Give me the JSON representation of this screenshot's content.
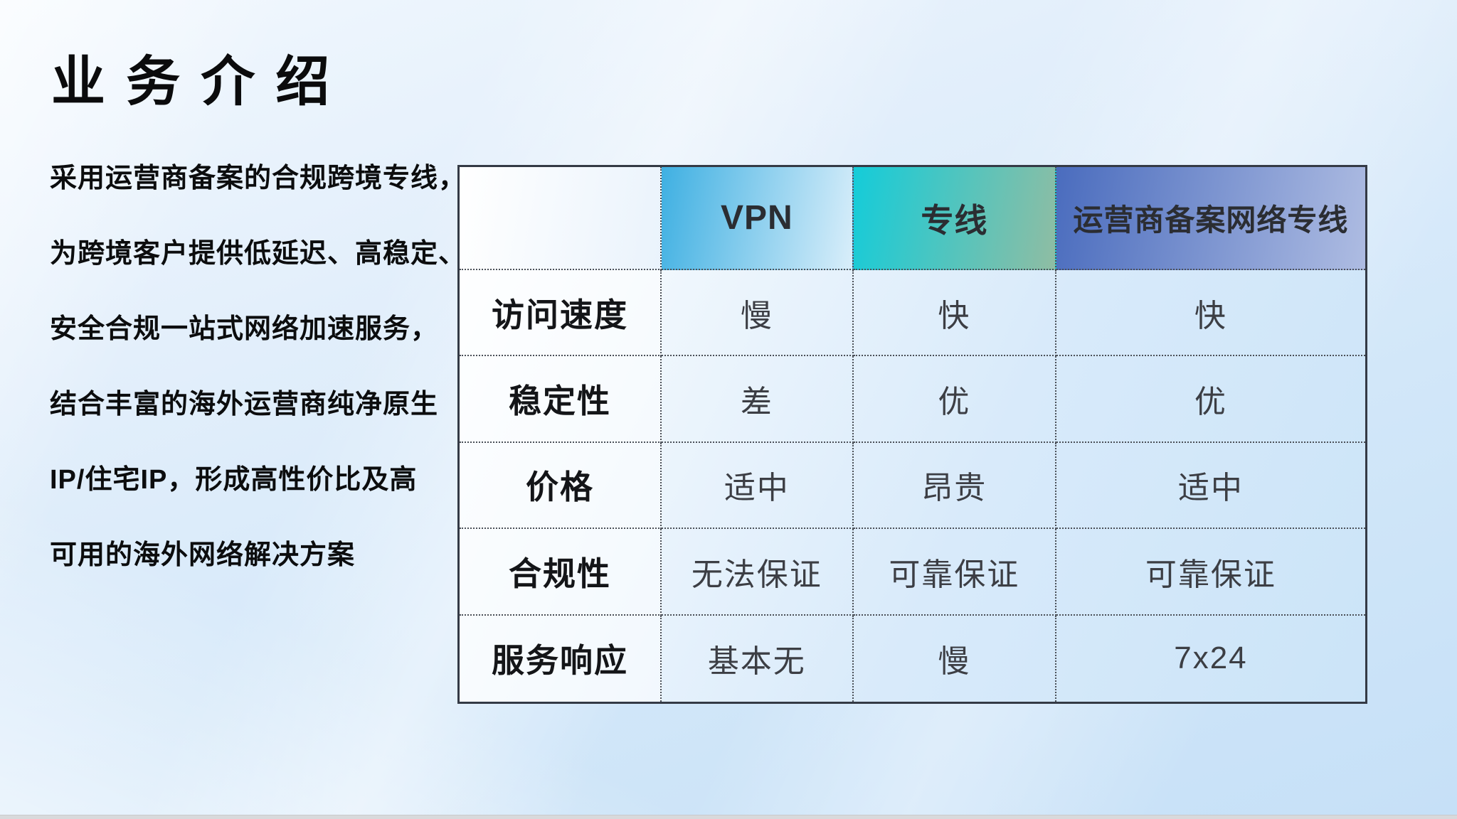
{
  "page": {
    "title": "业 务 介 绍",
    "background_base": "#cfe5f8",
    "bottom_strip_color": "#d8d9db"
  },
  "intro": {
    "lines": [
      "采用运营商备案的合规跨境专线，",
      "为跨境客户提供低延迟、高稳定、",
      "安全合规一站式网络加速服务，",
      "结合丰富的海外运营商纯净原生",
      "IP/住宅IP，形成高性价比及高",
      "可用的海外网络解决方案"
    ]
  },
  "comparison_table": {
    "columns": [
      {
        "label": "",
        "gradient": [
          "#ffffff",
          "#eaf3fc"
        ]
      },
      {
        "label": "VPN",
        "gradient": [
          "#3fb0e2",
          "#d9eefa"
        ]
      },
      {
        "label": "专线",
        "gradient": [
          "#14ccd9",
          "#8fbda3"
        ]
      },
      {
        "label": "运营商备案网络专线",
        "gradient": [
          "#4a6cbe",
          "#aebce2"
        ]
      }
    ],
    "rows": [
      {
        "label": "访问速度",
        "values": [
          "慢",
          "快",
          "快"
        ]
      },
      {
        "label": "稳定性",
        "values": [
          "差",
          "优",
          "优"
        ]
      },
      {
        "label": "价格",
        "values": [
          "适中",
          "昂贵",
          "适中"
        ]
      },
      {
        "label": "合规性",
        "values": [
          "无法保证",
          "可靠保证",
          "可靠保证"
        ]
      },
      {
        "label": "服务响应",
        "values": [
          "基本无",
          "慢",
          "7x24"
        ]
      }
    ]
  }
}
